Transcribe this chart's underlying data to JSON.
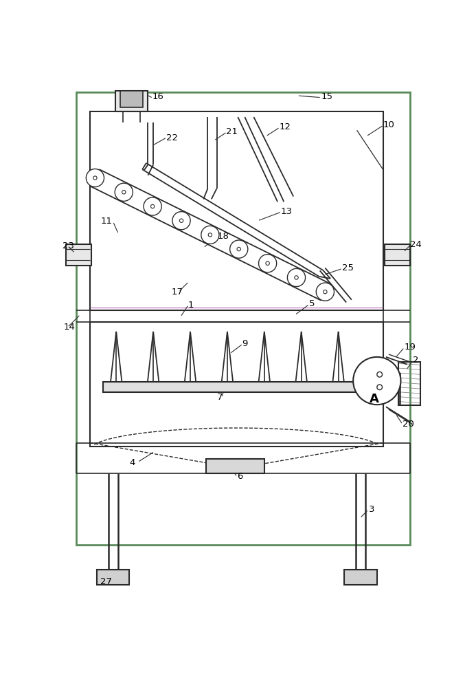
{
  "bg_color": "#ffffff",
  "lc": "#2a2a2a",
  "gc": "#5a8a5a",
  "fig_width": 6.93,
  "fig_height": 10.0,
  "dpi": 100
}
